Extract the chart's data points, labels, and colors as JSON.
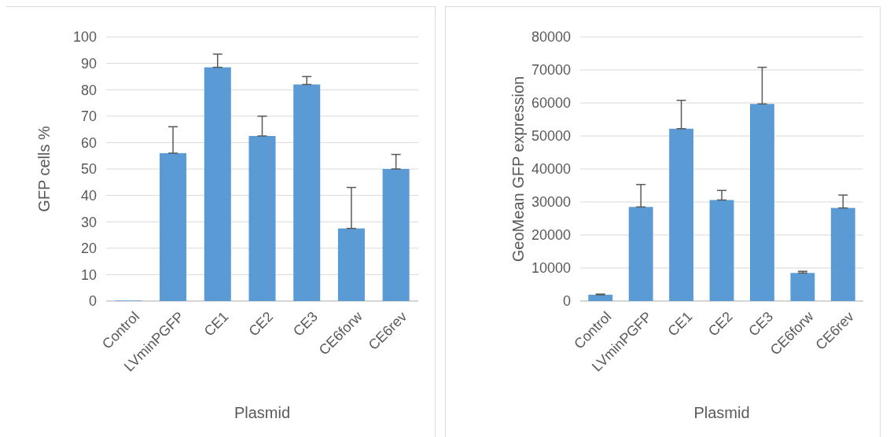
{
  "chart_data": [
    {
      "type": "bar",
      "categories": [
        "Control",
        "LVminPGFP",
        "CE1",
        "CE2",
        "CE3",
        "CE6forw",
        "CE6rev"
      ],
      "values": [
        0.2,
        56,
        88.5,
        62.5,
        82,
        27.5,
        50
      ],
      "errors": [
        null,
        [
          56,
          66
        ],
        [
          88.5,
          93.5
        ],
        [
          62.5,
          70
        ],
        [
          82,
          85
        ],
        [
          27.5,
          43
        ],
        [
          50,
          55.5
        ]
      ],
      "color": "#5b9bd5",
      "xlabel": "Plasmid",
      "ylabel": "GFP cells %",
      "ylim": [
        0,
        100
      ],
      "yticks": [
        0,
        10,
        20,
        30,
        40,
        50,
        60,
        70,
        80,
        90,
        100
      ],
      "grid": "y"
    },
    {
      "type": "bar",
      "categories": [
        "Control",
        "LVminPGFP",
        "CE1",
        "CE2",
        "CE3",
        "CE6forw",
        "CE6rev"
      ],
      "values": [
        1900,
        28500,
        52200,
        30600,
        59700,
        8500,
        28200
      ],
      "errors": [
        [
          1900,
          2100
        ],
        [
          28500,
          35300
        ],
        [
          52200,
          60800
        ],
        [
          30600,
          33500
        ],
        [
          59700,
          70800
        ],
        [
          8500,
          9000
        ],
        [
          28200,
          32100
        ]
      ],
      "color": "#5b9bd5",
      "xlabel": "Plasmid",
      "ylabel": "GeoMean GFP expression",
      "ylim": [
        0,
        80000
      ],
      "yticks": [
        0,
        10000,
        20000,
        30000,
        40000,
        50000,
        60000,
        70000,
        80000
      ],
      "grid": "y"
    }
  ]
}
